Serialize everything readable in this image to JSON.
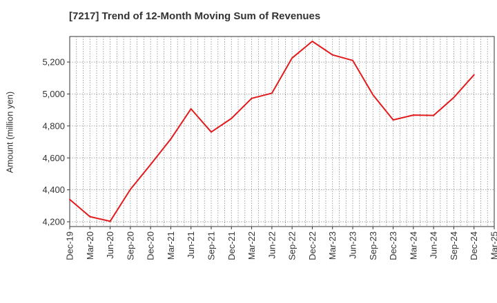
{
  "chart_data": {
    "type": "line",
    "title": "[7217]  Trend of 12-Month Moving Sum of Revenues",
    "xlabel": "",
    "ylabel": "Amount (million yen)",
    "x_ticks": [
      "Dec-19",
      "Mar-20",
      "Jun-20",
      "Sep-20",
      "Dec-20",
      "Mar-21",
      "Jun-21",
      "Sep-21",
      "Dec-21",
      "Mar-22",
      "Jun-22",
      "Sep-22",
      "Dec-22",
      "Mar-23",
      "Jun-23",
      "Sep-23",
      "Dec-23",
      "Mar-24",
      "Jun-24",
      "Sep-24",
      "Dec-24",
      "Mar-25"
    ],
    "y_ticks": [
      4200,
      4400,
      4600,
      4800,
      5000,
      5200
    ],
    "ylim": [
      4170,
      5360
    ],
    "grid": true,
    "legend": "none",
    "series": [
      {
        "color": "#e31a1c",
        "x": [
          "Dec-19",
          "Mar-20",
          "Jun-20",
          "Sep-20",
          "Dec-20",
          "Mar-21",
          "Jun-21",
          "Sep-21",
          "Dec-21",
          "Mar-22",
          "Jun-22",
          "Sep-22",
          "Dec-22",
          "Mar-23",
          "Jun-23",
          "Sep-23",
          "Dec-23",
          "Mar-24",
          "Jun-24",
          "Sep-24",
          "Dec-24"
        ],
        "values": [
          4340,
          4232,
          4203,
          4403,
          4558,
          4718,
          4907,
          4762,
          4847,
          4973,
          5005,
          5225,
          5330,
          5245,
          5210,
          4995,
          4838,
          4868,
          4866,
          4978,
          5120
        ]
      }
    ]
  }
}
